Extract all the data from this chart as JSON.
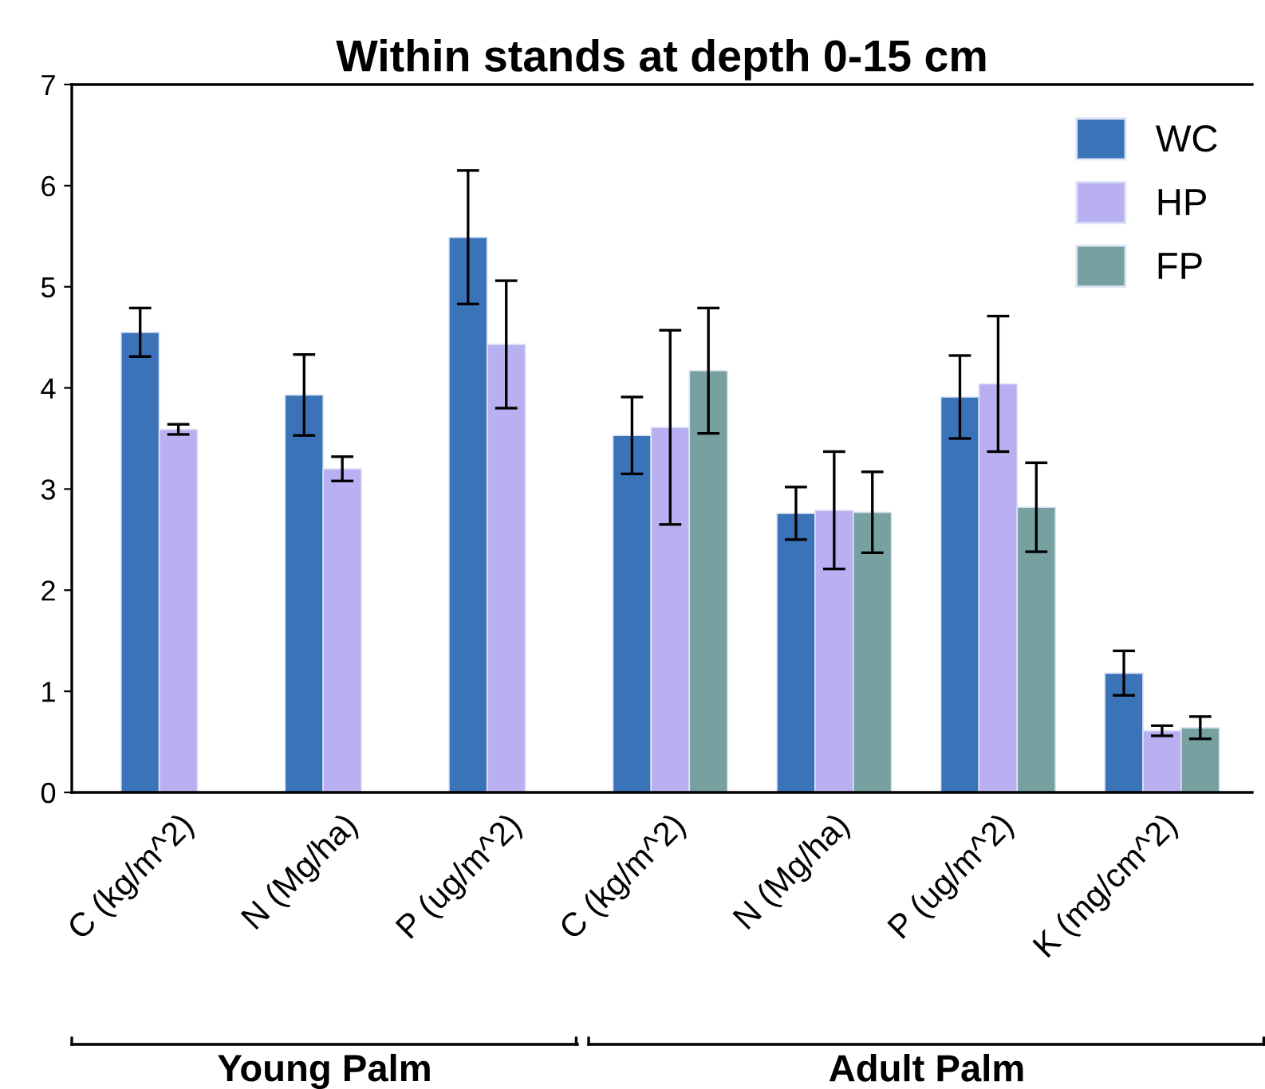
{
  "chart_data": {
    "type": "bar",
    "title": "Within stands at depth 0-15 cm",
    "categories": [
      "C (kg/m^2)",
      "N (Mg/ha)",
      "P (ug/m^2)",
      "C (kg/m^2)",
      "N (Mg/ha)",
      "P (ug/m^2)",
      "K (mg/cm^2)"
    ],
    "series": [
      {
        "name": "WC",
        "color": "#3b73b9",
        "values": [
          4.55,
          3.93,
          5.49,
          3.53,
          2.76,
          3.91,
          1.18
        ],
        "errors": [
          0.24,
          0.4,
          0.66,
          0.38,
          0.26,
          0.41,
          0.22
        ]
      },
      {
        "name": "HP",
        "color": "#b8b0f0",
        "values": [
          3.59,
          3.2,
          4.43,
          3.61,
          2.79,
          4.04,
          0.61
        ],
        "errors": [
          0.05,
          0.12,
          0.63,
          0.96,
          0.58,
          0.67,
          0.05
        ]
      },
      {
        "name": "FP",
        "color": "#77a1a1",
        "values": [
          null,
          null,
          null,
          4.17,
          2.77,
          2.82,
          0.64
        ],
        "errors": [
          null,
          null,
          null,
          0.62,
          0.4,
          0.44,
          0.11
        ]
      }
    ],
    "ylim": [
      0,
      7
    ],
    "yticks": [
      0,
      1,
      2,
      3,
      4,
      5,
      6,
      7
    ],
    "grid": false,
    "legend": "top right",
    "annotations": [
      "Young Palm",
      "Adult Palm"
    ]
  }
}
